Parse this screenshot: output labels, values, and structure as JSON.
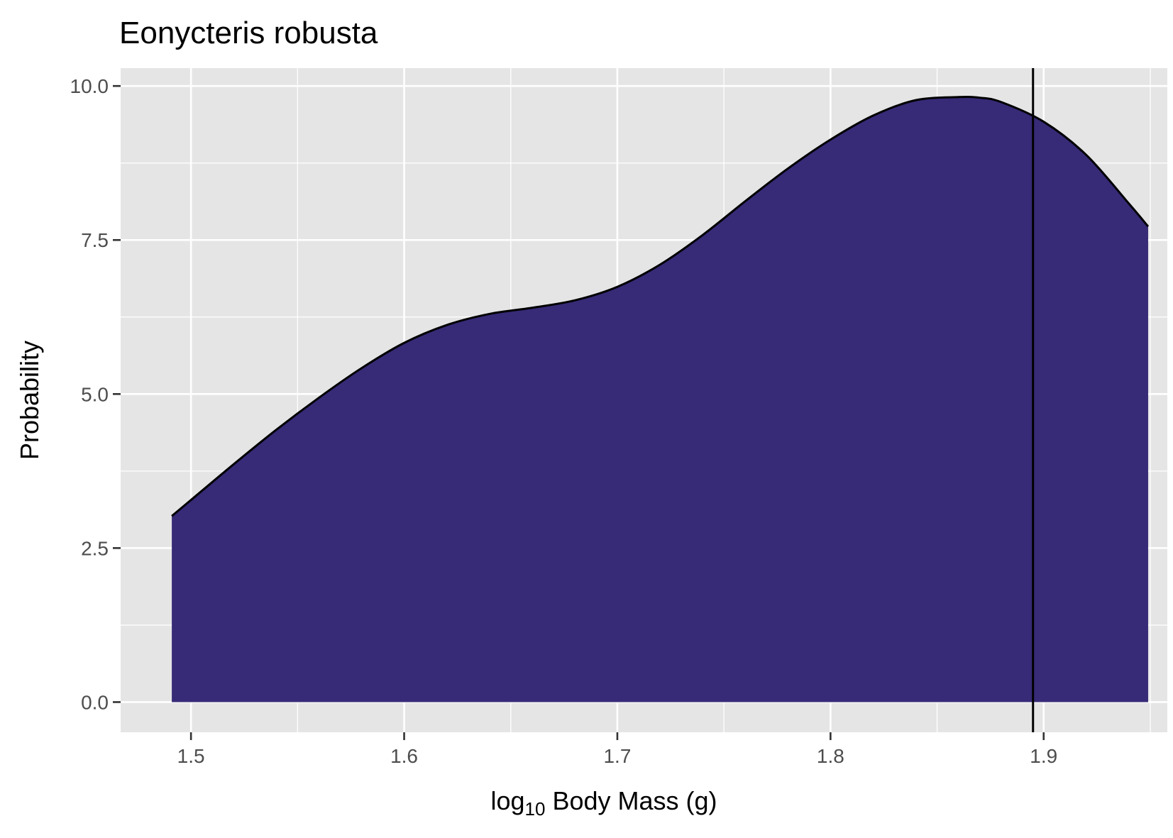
{
  "chart_data": {
    "type": "area",
    "title": "Eonycteris robusta",
    "xlabel": {
      "prefix": "log",
      "subscript": "10",
      "suffix": " Body Mass (g)"
    },
    "ylabel": "Probability",
    "xlim": [
      1.467,
      1.958
    ],
    "ylim": [
      -0.49,
      10.29
    ],
    "x_ticks": [
      1.5,
      1.6,
      1.7,
      1.8,
      1.9
    ],
    "x_tick_labels": [
      "1.5",
      "1.6",
      "1.7",
      "1.8",
      "1.9"
    ],
    "y_ticks": [
      0,
      2.5,
      5,
      7.5,
      10
    ],
    "y_tick_labels": [
      "0.0",
      "2.5",
      "5.0",
      "7.5",
      "10.0"
    ],
    "grid": true,
    "fill_color": "#372a77",
    "panel_color": "#e5e5e5",
    "series": [
      {
        "x": [
          1.491,
          1.5,
          1.52,
          1.54,
          1.56,
          1.58,
          1.6,
          1.62,
          1.64,
          1.66,
          1.68,
          1.7,
          1.72,
          1.74,
          1.76,
          1.78,
          1.8,
          1.82,
          1.84,
          1.86,
          1.87,
          1.88,
          1.9,
          1.92,
          1.94,
          1.949
        ],
        "y": [
          3.02,
          3.28,
          3.86,
          4.42,
          4.94,
          5.42,
          5.83,
          6.12,
          6.3,
          6.4,
          6.52,
          6.74,
          7.1,
          7.58,
          8.13,
          8.66,
          9.13,
          9.52,
          9.77,
          9.82,
          9.81,
          9.74,
          9.42,
          8.88,
          8.09,
          7.72
        ]
      }
    ],
    "vline_x": 1.895
  }
}
